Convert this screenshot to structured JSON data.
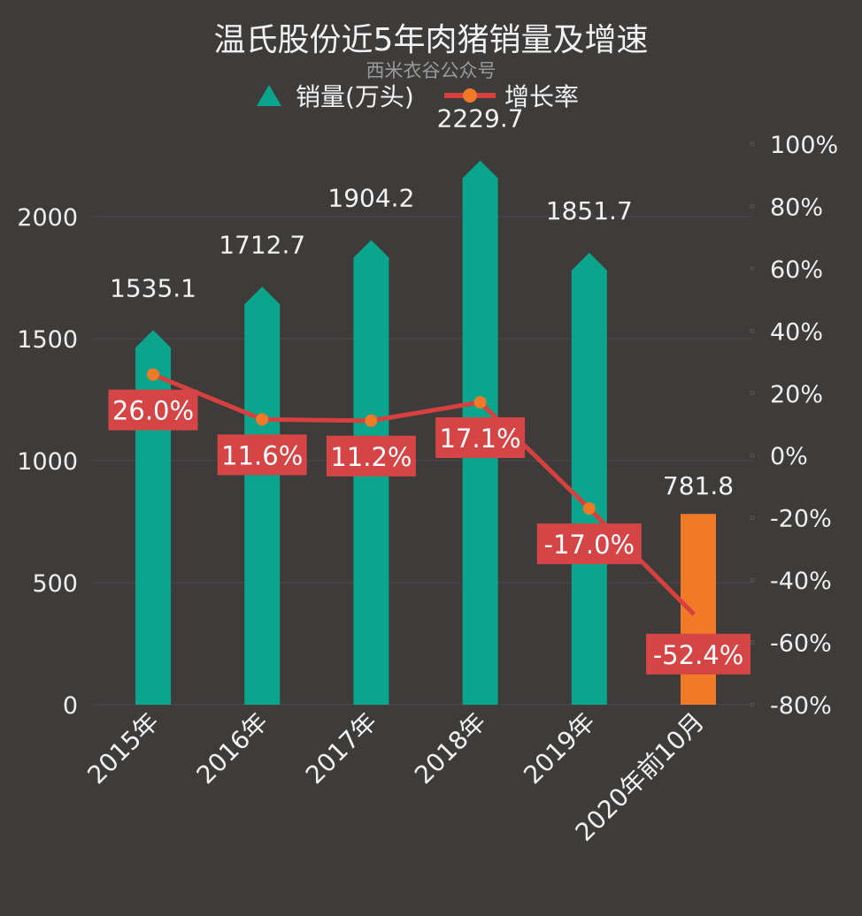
{
  "colors": {
    "background": "#3d3c3b",
    "bar": "#0aa58c",
    "bar_highlight": "#f07a28",
    "line": "#d6403f",
    "marker": "#f07a28",
    "label_box": "#d64545"
  },
  "chart_data": {
    "type": "bar+line",
    "title": "温氏股份近5年肉猪销量及增速",
    "subtitle": "西米衣谷公众号",
    "legend": {
      "placement": "top",
      "entries": [
        "销量(万头)",
        "增长率"
      ]
    },
    "categories": [
      "2015年",
      "2016年",
      "2017年",
      "2018年",
      "2019年",
      "2020年前10月"
    ],
    "series": [
      {
        "name": "销量(万头)",
        "type": "bar",
        "axis": "left",
        "values": [
          1535.1,
          1712.7,
          1904.2,
          2229.7,
          1851.7,
          781.8
        ],
        "labels": [
          "1535.1",
          "1712.7",
          "1904.2",
          "2229.7",
          "1851.7",
          "781.8"
        ]
      },
      {
        "name": "增长率",
        "type": "line",
        "axis": "right",
        "values": [
          26.0,
          11.6,
          11.2,
          17.1,
          -17.0,
          -52.4
        ],
        "labels": [
          "26.0%",
          "11.6%",
          "11.2%",
          "17.1%",
          "-17.0%",
          "-52.4%"
        ]
      }
    ],
    "y_left": {
      "min": 0,
      "max": 2000,
      "ticks": [
        "0",
        "500",
        "1000",
        "1500",
        "2000"
      ]
    },
    "y_right": {
      "min": -80,
      "max": 100,
      "ticks": [
        "-80%",
        "-60%",
        "-40%",
        "-20%",
        "0%",
        "20%",
        "40%",
        "60%",
        "80%",
        "100%"
      ]
    },
    "grid": true
  }
}
